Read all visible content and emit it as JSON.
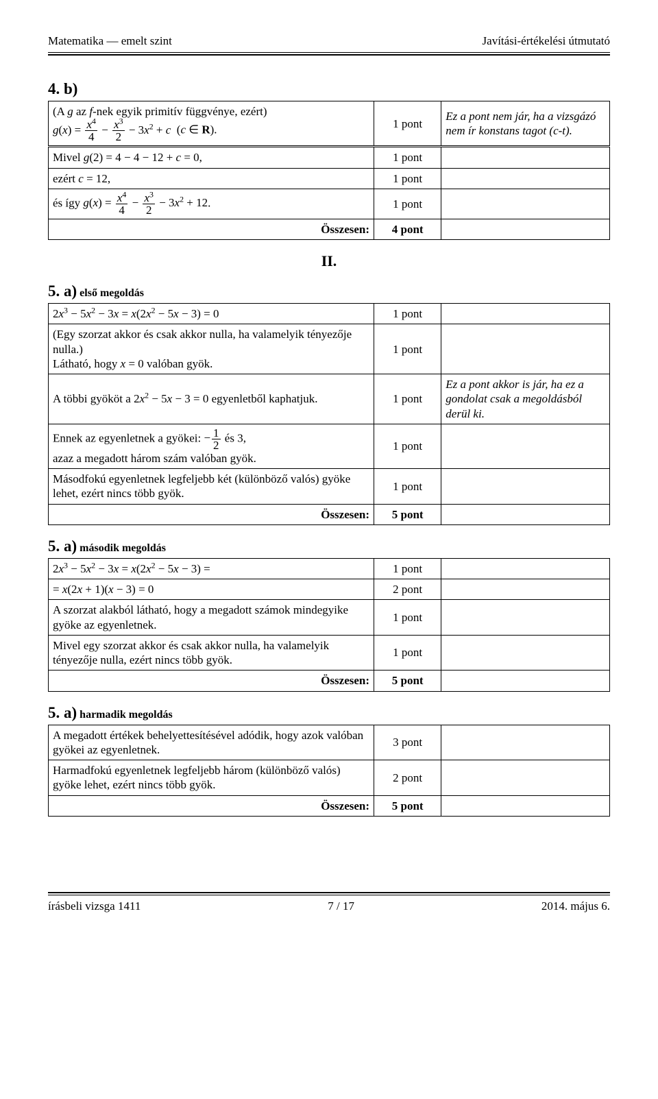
{
  "header": {
    "left": "Matematika — emelt szint",
    "right": "Javítási-értékelési útmutató"
  },
  "footer": {
    "left": "írásbeli vizsga 1411",
    "center": "7 / 17",
    "right": "2014. május 6."
  },
  "roman_numeral": "II.",
  "sections": [
    {
      "heading": "4. b)",
      "rows": [
        {
          "desc_html": "(A <i>g</i> az <i>f</i>-nek egyik primitív függvénye, ezért)<br><span class='math'><i>g</i>(<i>x</i>) = <span class='frac'><span class='num'><i>x</i><sup>4</sup></span><span class='den'>4</span></span> − <span class='frac'><span class='num'><i>x</i><sup>3</sup></span><span class='den'>2</span></span> − 3<i>x</i><sup>2</sup> + <i>c</i></span> &nbsp;(<i>c</i> ∈ <b>R</b>).",
          "points": "1 pont",
          "note": "Ez a pont nem jár, ha a vizsgázó nem ír konstans tagot (c-t).",
          "dbl": true
        },
        {
          "desc_html": "Mivel <i>g</i>(2) = 4 − 4 − 12 + <i>c</i> = 0,",
          "points": "1 pont",
          "note": ""
        },
        {
          "desc_html": "ezért <i>c</i> = 12,",
          "points": "1 pont",
          "note": ""
        },
        {
          "desc_html": "és így <span class='math'><i>g</i>(<i>x</i>) = <span class='frac'><span class='num'><i>x</i><sup>4</sup></span><span class='den'>4</span></span> − <span class='frac'><span class='num'><i>x</i><sup>3</sup></span><span class='den'>2</span></span> − 3<i>x</i><sup>2</sup> + 12</span>.",
          "points": "1 pont",
          "note": ""
        },
        {
          "desc_html": "Összesen:",
          "points": "4 pont",
          "note": "",
          "is_total": true
        }
      ]
    },
    {
      "heading": "5. a)",
      "heading_suffix": " első megoldás",
      "rows": [
        {
          "desc_html": "<span class='math'>2<i>x</i><sup>3</sup> − 5<i>x</i><sup>2</sup> − 3<i>x</i> = <i>x</i>(2<i>x</i><sup>2</sup> − 5<i>x</i> − 3) = 0</span>",
          "points": "1 pont",
          "note": ""
        },
        {
          "desc_html": "(Egy szorzat akkor és csak akkor nulla, ha valamelyik tényezője nulla.)<br>Látható, hogy <i>x</i> = 0 valóban gyök.",
          "points": "1 pont",
          "note": ""
        },
        {
          "desc_html": "A többi gyököt a <span class='math'>2<i>x</i><sup>2</sup> − 5<i>x</i> − 3 = 0</span> egyenletből kaphatjuk.",
          "points": "1 pont",
          "note": "Ez a pont akkor is jár, ha ez a gondolat csak a megoldásból derül ki."
        },
        {
          "desc_html": "Ennek az egyenletnek a gyökei: <span class='math'>−<span class='frac'><span class='num'>1</span><span class='den'>2</span></span></span> és 3,<br>azaz a megadott három szám valóban gyök.",
          "points": "1 pont",
          "note": ""
        },
        {
          "desc_html": "Másodfokú egyenletnek legfeljebb két (különböző valós) gyöke lehet, ezért nincs több gyök.",
          "points": "1 pont",
          "note": ""
        },
        {
          "desc_html": "Összesen:",
          "points": "5 pont",
          "note": "",
          "is_total": true
        }
      ]
    },
    {
      "heading": "5. a)",
      "heading_suffix": " második megoldás",
      "rows": [
        {
          "desc_html": "<span class='math'>2<i>x</i><sup>3</sup> − 5<i>x</i><sup>2</sup> − 3<i>x</i> = <i>x</i>(2<i>x</i><sup>2</sup> − 5<i>x</i> − 3) =</span>",
          "points": "1 pont",
          "note": ""
        },
        {
          "desc_html": "<span class='math'>= <i>x</i>(2<i>x</i> + 1)(<i>x</i> − 3) = 0</span>",
          "points": "2 pont",
          "note": ""
        },
        {
          "desc_html": "A szorzat alakból látható, hogy a megadott számok mindegyike gyöke az egyenletnek.",
          "points": "1 pont",
          "note": ""
        },
        {
          "desc_html": "Mivel egy szorzat akkor és csak akkor nulla, ha valamelyik tényezője nulla, ezért nincs több gyök.",
          "points": "1 pont",
          "note": ""
        },
        {
          "desc_html": "Összesen:",
          "points": "5 pont",
          "note": "",
          "is_total": true
        }
      ]
    },
    {
      "heading": "5. a)",
      "heading_suffix": " harmadik megoldás",
      "rows": [
        {
          "desc_html": "A megadott értékek behelyettesítésével adódik, hogy azok valóban gyökei az egyenletnek.",
          "points": "3 pont",
          "note": ""
        },
        {
          "desc_html": "Harmadfokú egyenletnek legfeljebb három (különböző valós) gyöke lehet, ezért nincs több gyök.",
          "points": "2 pont",
          "note": ""
        },
        {
          "desc_html": "Összesen:",
          "points": "5 pont",
          "note": "",
          "is_total": true
        }
      ]
    }
  ]
}
